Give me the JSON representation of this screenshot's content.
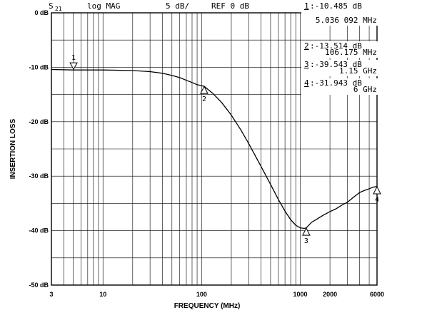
{
  "chart_data": {
    "type": "line",
    "header": {
      "param": "S",
      "param_sub": "21",
      "format": "log MAG",
      "scale": "5 dB/",
      "ref": "REF 0 dB"
    },
    "xlabel": "FREQUENCY  (MHz)",
    "ylabel": "INSERTION LOSS",
    "x_scale": "log",
    "xlim": [
      3,
      6000
    ],
    "ylim": [
      -50,
      0
    ],
    "grid": true,
    "x_ticks": [
      {
        "value": 3,
        "label": "3"
      },
      {
        "value": 10,
        "label": "10"
      },
      {
        "value": 100,
        "label": "100"
      },
      {
        "value": 1000,
        "label": "1000"
      },
      {
        "value": 2000,
        "label": "2000"
      },
      {
        "value": 6000,
        "label": "6000"
      }
    ],
    "y_ticks": [
      {
        "value": 0,
        "label": "0 dB"
      },
      {
        "value": -10,
        "label": "-10 dB"
      },
      {
        "value": -20,
        "label": "-20 dB"
      },
      {
        "value": -30,
        "label": "-30 dB"
      },
      {
        "value": -40,
        "label": "-40 dB"
      },
      {
        "value": -50,
        "label": "-50 dB"
      }
    ],
    "series": [
      {
        "x": [
          3,
          5,
          10,
          20,
          30,
          40,
          50,
          60,
          70,
          80,
          90,
          106,
          130,
          160,
          200,
          250,
          300,
          400,
          500,
          600,
          700,
          800,
          900,
          1000,
          1100,
          1150,
          1300,
          1500,
          1700,
          2000,
          2300,
          2700,
          3000,
          3500,
          4000,
          4500,
          5000,
          5500,
          6000
        ],
        "y": [
          -10.4,
          -10.5,
          -10.5,
          -10.6,
          -10.8,
          -11.1,
          -11.5,
          -11.9,
          -12.4,
          -12.8,
          -13.2,
          -13.5,
          -14.8,
          -16.5,
          -18.8,
          -21.5,
          -24.0,
          -28.2,
          -31.5,
          -34.3,
          -36.4,
          -38.0,
          -39.0,
          -39.5,
          -39.6,
          -39.5,
          -38.5,
          -37.8,
          -37.2,
          -36.5,
          -36.0,
          -35.2,
          -34.8,
          -33.8,
          -33.0,
          -32.6,
          -32.3,
          -32.0,
          -31.9
        ]
      }
    ],
    "markers": [
      {
        "label": "1",
        "x": 5.036,
        "y": -10.485,
        "pointer": "down"
      },
      {
        "label": "2",
        "x": 106.175,
        "y": -13.514,
        "pointer": "up"
      },
      {
        "label": "3",
        "x": 1150,
        "y": -39.543,
        "pointer": "up"
      },
      {
        "label": "4",
        "x": 6000,
        "y": -31.943,
        "pointer": "up"
      }
    ],
    "readouts": [
      {
        "num": "1",
        "line1": ":-10.485 dB",
        "line2": "5.036 092 MHz"
      },
      {
        "num": "2",
        "line1": ":-13.514 dB",
        "line2": "106.175 MHz"
      },
      {
        "num": "3",
        "line1": ":-39.543 dB",
        "line2": "1.15 GHz"
      },
      {
        "num": "4",
        "line1": ":-31.943 dB",
        "line2": "6 GHz"
      }
    ]
  }
}
